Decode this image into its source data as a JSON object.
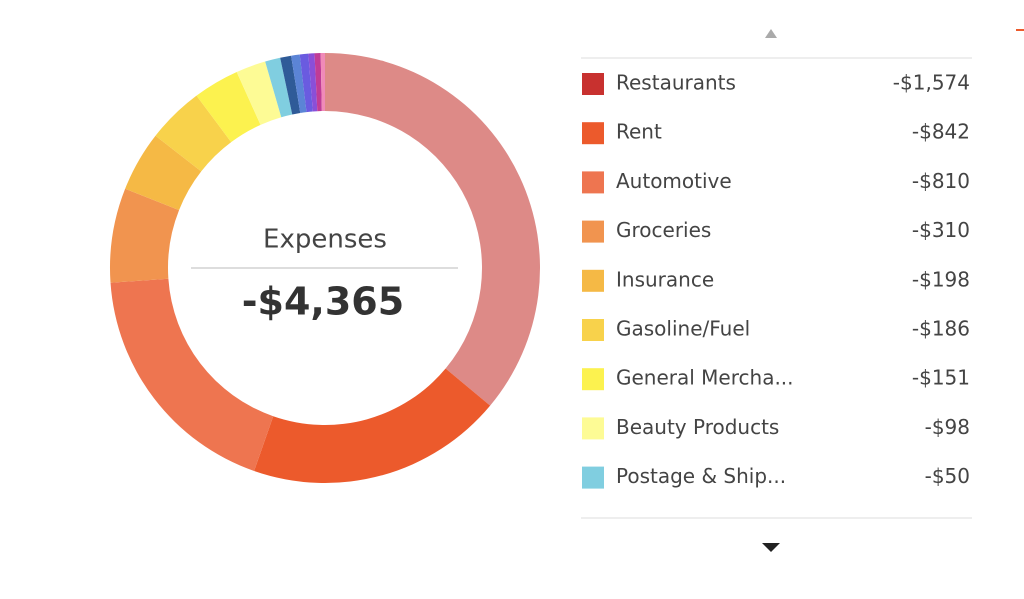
{
  "chart_data": {
    "type": "donut",
    "title": "Expenses",
    "total": -4365,
    "total_label": "-$4,365",
    "categories": [
      "Restaurants",
      "Rent",
      "Automotive",
      "Groceries",
      "Insurance",
      "Gasoline/Fuel",
      "General Mercha...",
      "Beauty Products",
      "Postage & Ship...",
      null,
      null,
      null,
      null,
      null,
      null
    ],
    "values": [
      -1574,
      -842,
      -810,
      -310,
      -198,
      -186,
      -151,
      -98,
      -50,
      -36,
      -28,
      -28,
      -20,
      -20,
      -14
    ],
    "value_labels": [
      "-$1,574",
      "-$842",
      "-$810",
      "-$310",
      "-$198",
      "-$186",
      "-$151",
      "-$98",
      "-$50",
      null,
      null,
      null,
      null,
      null,
      null
    ],
    "colors": [
      "#dd8a87",
      "#ec5a2c",
      "#ee7550",
      "#f1944f",
      "#f5b945",
      "#f8d24b",
      "#fcf24f",
      "#fdfb95",
      "#80cee0",
      "#2f5b98",
      "#5b84d6",
      "#6a5be0",
      "#8a4fd8",
      "#c03c96",
      "#f08ab8"
    ],
    "swatch_colors": [
      "#c8312f",
      "#ec5a2c",
      "#ee7550",
      "#f1944f",
      "#f5b945",
      "#f8d24b",
      "#fcf24f",
      "#fdfb95",
      "#80cee0",
      "#2f5b98",
      "#5b84d6",
      "#6a5be0",
      "#8a4fd8",
      "#c03c96",
      "#f08ab8"
    ]
  }
}
